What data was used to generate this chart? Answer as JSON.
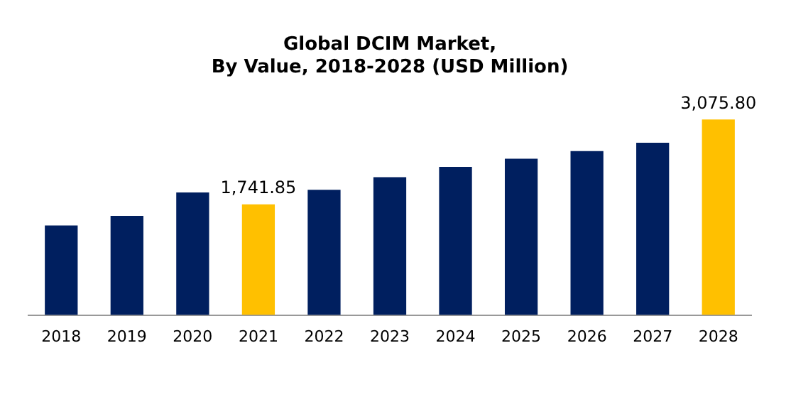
{
  "chart_data": {
    "type": "bar",
    "title": [
      "Global DCIM Market,",
      "By Value, 2018-2028 (USD Million)"
    ],
    "categories": [
      "2018",
      "2019",
      "2020",
      "2021",
      "2022",
      "2023",
      "2024",
      "2025",
      "2026",
      "2027",
      "2028"
    ],
    "values": [
      1410,
      1560,
      1930,
      1741.85,
      1970,
      2170,
      2330,
      2460,
      2580,
      2710,
      3075.8
    ],
    "colors": [
      "#001f5f",
      "#001f5f",
      "#001f5f",
      "#ffc000",
      "#001f5f",
      "#001f5f",
      "#001f5f",
      "#001f5f",
      "#001f5f",
      "#001f5f",
      "#ffc000"
    ],
    "value_labels": [
      null,
      null,
      null,
      "1,741.85",
      null,
      null,
      null,
      null,
      null,
      null,
      "3,075.80"
    ],
    "grid": false,
    "legend": false
  }
}
